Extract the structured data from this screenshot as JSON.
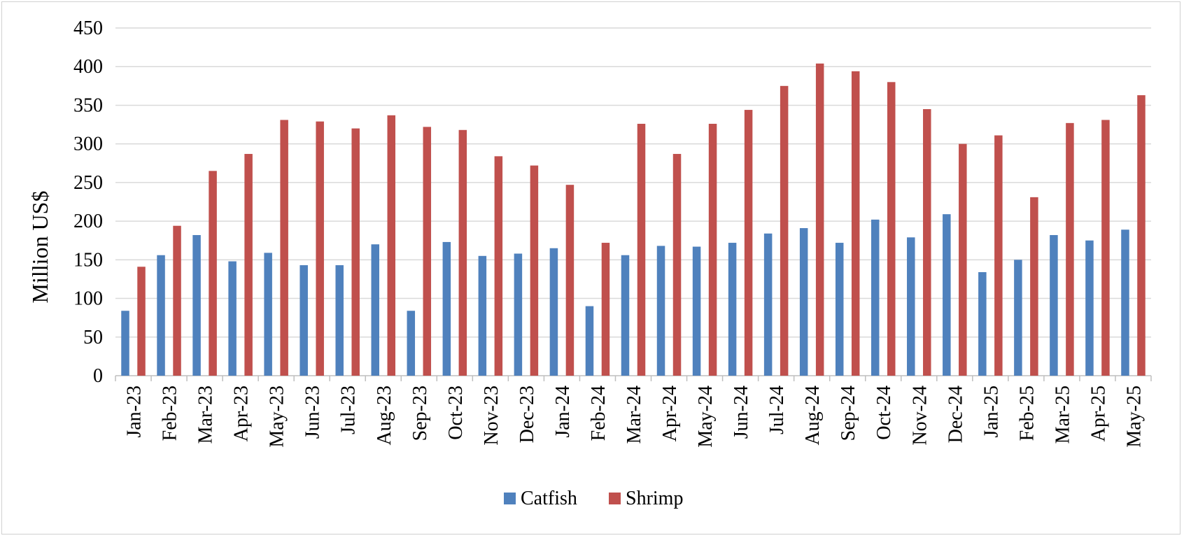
{
  "chart_data": {
    "type": "bar",
    "title": "",
    "xlabel": "",
    "ylabel": "Million US$",
    "ylim": [
      0,
      450
    ],
    "yticks": [
      0,
      50,
      100,
      150,
      200,
      250,
      300,
      350,
      400,
      450
    ],
    "grid": true,
    "legend_position": "bottom-center",
    "categories": [
      "Jan-23",
      "Feb-23",
      "Mar-23",
      "Apr-23",
      "May-23",
      "Jun-23",
      "Jul-23",
      "Aug-23",
      "Sep-23",
      "Oct-23",
      "Nov-23",
      "Dec-23",
      "Jan-24",
      "Feb-24",
      "Mar-24",
      "Apr-24",
      "May-24",
      "Jun-24",
      "Jul-24",
      "Aug-24",
      "Sep-24",
      "Oct-24",
      "Nov-24",
      "Dec-24",
      "Jan-25",
      "Feb-25",
      "Mar-25",
      "Apr-25",
      "May-25"
    ],
    "series": [
      {
        "name": "Catfish",
        "color": "#4f81bd",
        "values": [
          84,
          156,
          182,
          148,
          159,
          143,
          143,
          170,
          84,
          173,
          155,
          158,
          165,
          90,
          156,
          168,
          167,
          172,
          184,
          191,
          172,
          202,
          179,
          209,
          134,
          150,
          182,
          175,
          189
        ]
      },
      {
        "name": "Shrimp",
        "color": "#c0504d",
        "values": [
          141,
          194,
          265,
          287,
          331,
          329,
          320,
          337,
          322,
          318,
          284,
          272,
          247,
          172,
          326,
          287,
          326,
          344,
          375,
          404,
          394,
          380,
          345,
          300,
          311,
          231,
          327,
          331,
          363
        ]
      }
    ]
  }
}
